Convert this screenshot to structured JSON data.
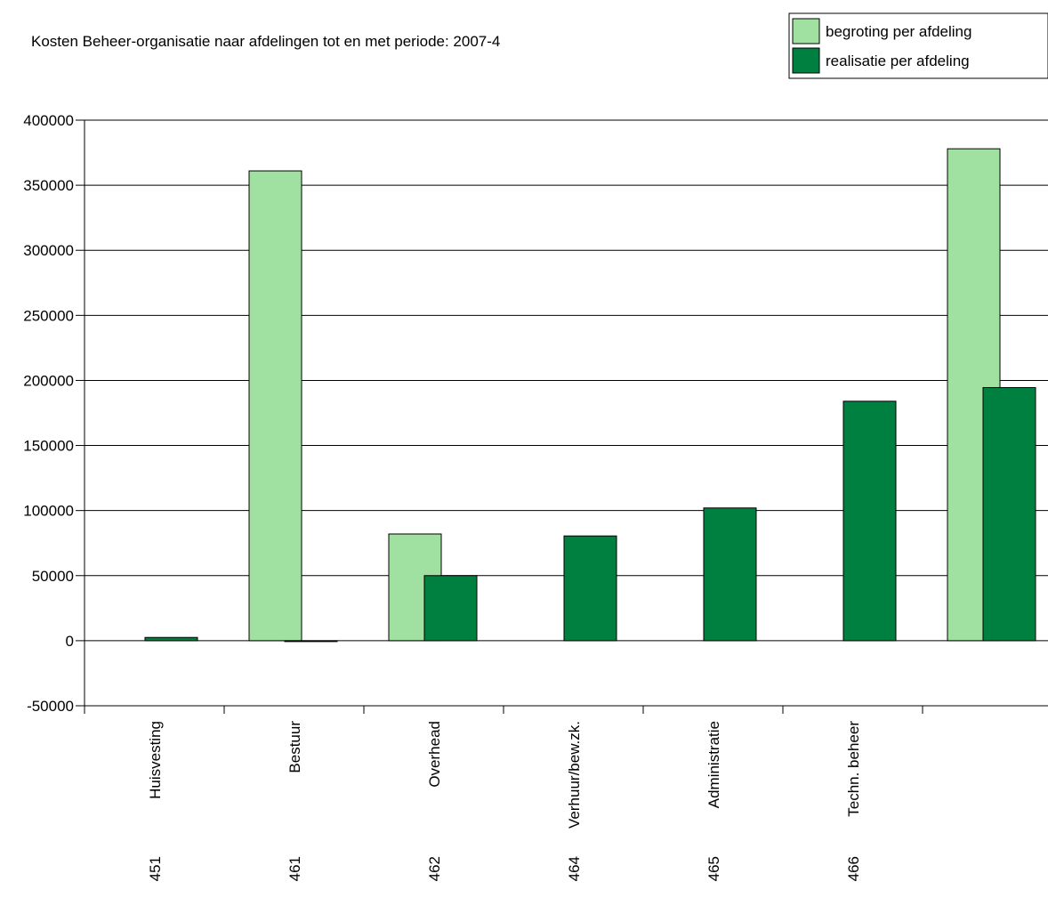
{
  "chart_data": {
    "type": "bar",
    "title": "Kosten Beheer-organisatie naar afdelingen tot en met periode: 2007-4",
    "legend_position": "top-right",
    "grid": true,
    "ylim": [
      -50000,
      400000
    ],
    "yticks": [
      -50000,
      0,
      50000,
      100000,
      150000,
      200000,
      250000,
      300000,
      350000,
      400000
    ],
    "categories": [
      {
        "name": "Huisvesting",
        "code": "451"
      },
      {
        "name": "Bestuur",
        "code": "461"
      },
      {
        "name": "Overhead",
        "code": "462"
      },
      {
        "name": "Verhuur/bew.zk.",
        "code": "464"
      },
      {
        "name": "Administratie",
        "code": "465"
      },
      {
        "name": "Techn. beheer",
        "code": "466"
      },
      {
        "name": "",
        "code": ""
      }
    ],
    "series": [
      {
        "name": "begroting per afdeling",
        "color": "#a0e0a0",
        "values": [
          0,
          361000,
          82000,
          0,
          0,
          0,
          378000
        ]
      },
      {
        "name": "realisatie per afdeling",
        "color": "#008040",
        "values": [
          2500,
          -500,
          50000,
          80500,
          102000,
          184000,
          194500
        ]
      }
    ]
  }
}
